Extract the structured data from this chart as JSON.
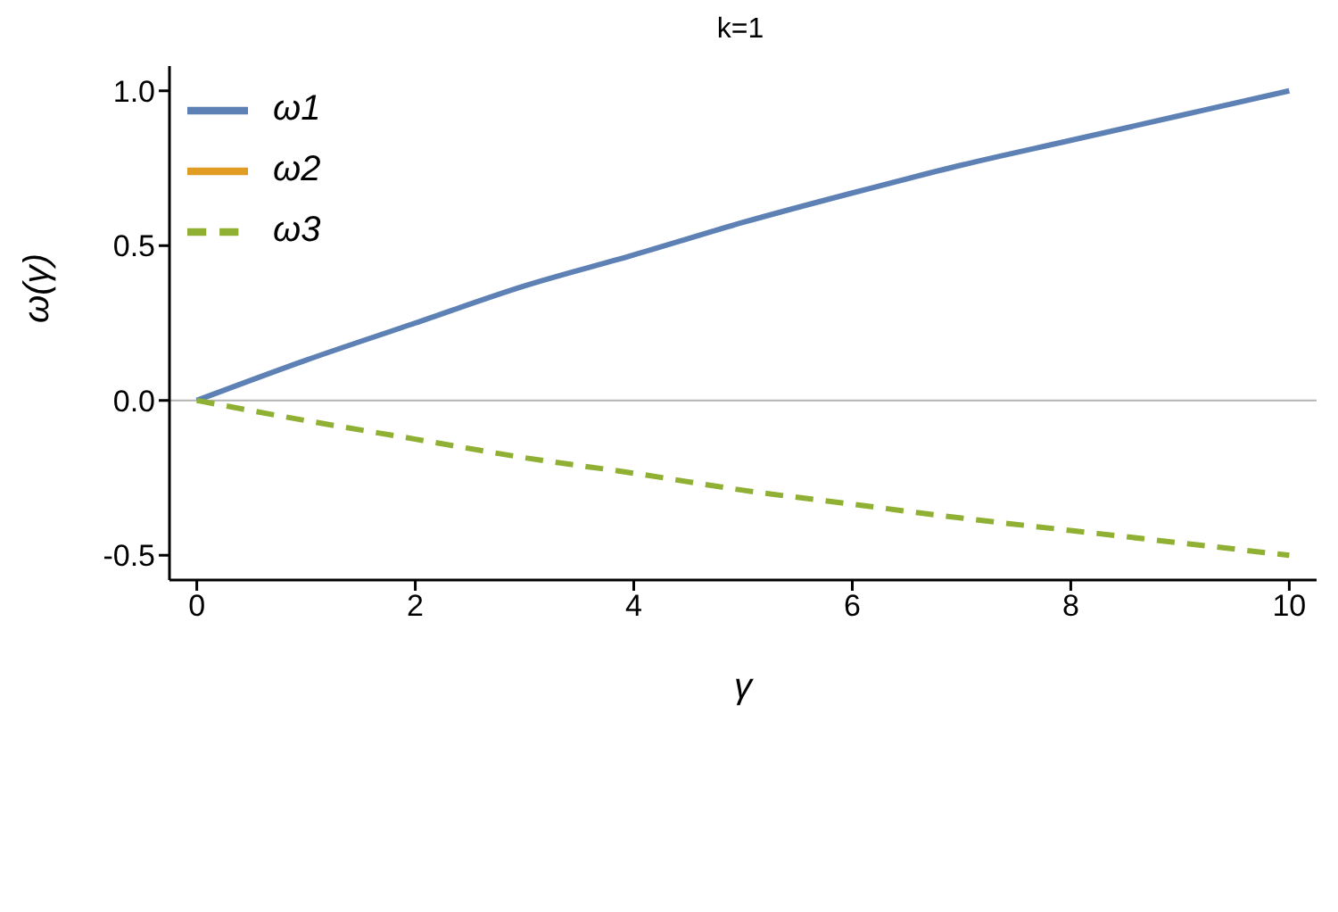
{
  "chart_data": {
    "type": "line",
    "title": "k=1",
    "xlabel": "γ",
    "ylabel": "ω(γ)",
    "x": [
      0,
      1,
      2,
      3,
      4,
      5,
      6,
      7,
      8,
      9,
      10
    ],
    "series": [
      {
        "name": "ω1",
        "color": "#5e81b5",
        "values": [
          0,
          0.13,
          0.25,
          0.37,
          0.47,
          0.575,
          0.67,
          0.76,
          0.84,
          0.92,
          1.0
        ]
      },
      {
        "name": "ω2",
        "color": "#e19c24",
        "values": [
          null,
          null,
          null,
          null,
          null,
          null,
          null,
          null,
          null,
          null,
          null
        ]
      },
      {
        "name": "ω3",
        "color": "#8fb032",
        "line_style": "dashed",
        "values": [
          0,
          -0.065,
          -0.125,
          -0.185,
          -0.235,
          -0.29,
          -0.335,
          -0.38,
          -0.42,
          -0.46,
          -0.5
        ]
      }
    ],
    "xlim": [
      -0.25,
      10.25
    ],
    "xticks": [
      0,
      2,
      4,
      6,
      8,
      10
    ],
    "ylim": [
      -0.58,
      1.08
    ],
    "yticks": [
      {
        "value": -0.5,
        "label": "-0.5"
      },
      {
        "value": 0,
        "label": "0.0"
      },
      {
        "value": 0.5,
        "label": "0.5"
      },
      {
        "value": 1,
        "label": "1.0"
      }
    ],
    "ref_lines": [
      {
        "axis": "y",
        "value": 0,
        "color": "#b3b3b3"
      }
    ],
    "legend": "top left",
    "grid": false,
    "marker": "none",
    "line_style": "solid"
  }
}
